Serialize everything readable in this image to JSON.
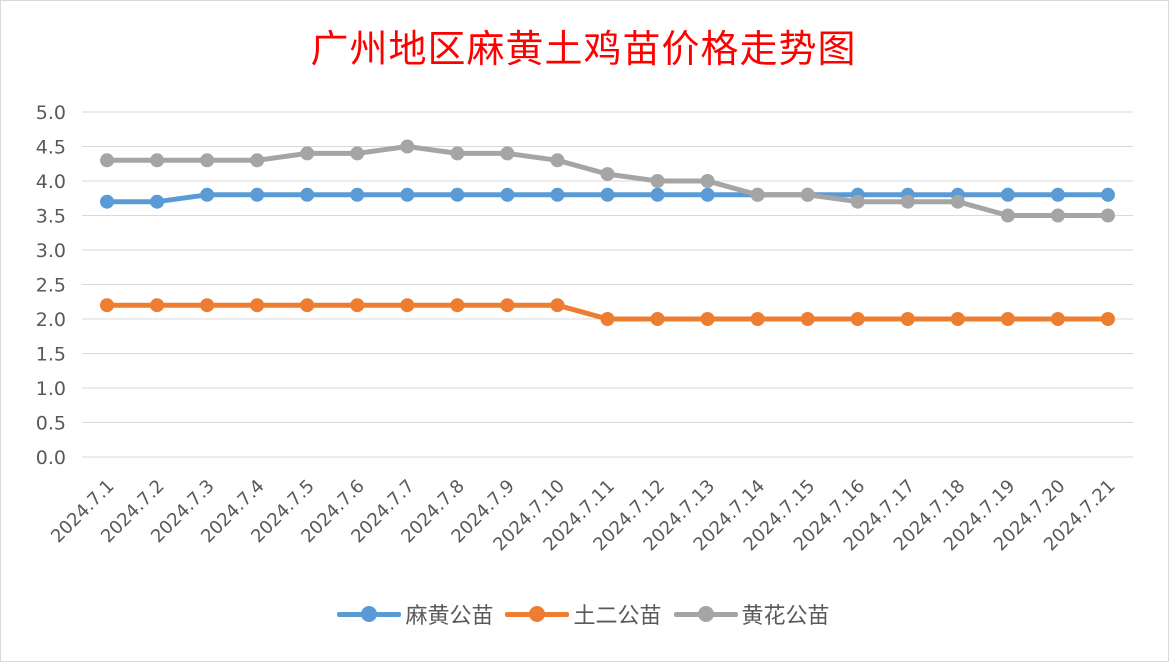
{
  "chart_data": {
    "type": "line",
    "title": "广州地区麻黄土鸡苗价格走势图",
    "categories": [
      "2024.7.1",
      "2024.7.2",
      "2024.7.3",
      "2024.7.4",
      "2024.7.5",
      "2024.7.6",
      "2024.7.7",
      "2024.7.8",
      "2024.7.9",
      "2024.7.10",
      "2024.7.11",
      "2024.7.12",
      "2024.7.13",
      "2024.7.14",
      "2024.7.15",
      "2024.7.16",
      "2024.7.17",
      "2024.7.18",
      "2024.7.19",
      "2024.7.20",
      "2024.7.21"
    ],
    "series": [
      {
        "name": "麻黄公苗",
        "color": "#5b9bd5",
        "values": [
          3.7,
          3.7,
          3.8,
          3.8,
          3.8,
          3.8,
          3.8,
          3.8,
          3.8,
          3.8,
          3.8,
          3.8,
          3.8,
          3.8,
          3.8,
          3.8,
          3.8,
          3.8,
          3.8,
          3.8,
          3.8
        ]
      },
      {
        "name": "土二公苗",
        "color": "#ed7d31",
        "values": [
          2.2,
          2.2,
          2.2,
          2.2,
          2.2,
          2.2,
          2.2,
          2.2,
          2.2,
          2.2,
          2.0,
          2.0,
          2.0,
          2.0,
          2.0,
          2.0,
          2.0,
          2.0,
          2.0,
          2.0,
          2.0
        ]
      },
      {
        "name": "黄花公苗",
        "color": "#a5a5a5",
        "values": [
          4.3,
          4.3,
          4.3,
          4.3,
          4.4,
          4.4,
          4.5,
          4.4,
          4.4,
          4.3,
          4.1,
          4.0,
          4.0,
          3.8,
          3.8,
          3.7,
          3.7,
          3.7,
          3.5,
          3.5,
          3.5
        ]
      }
    ],
    "ylim": [
      0,
      5
    ],
    "yticks": [
      "0.0",
      "0.5",
      "1.0",
      "1.5",
      "2.0",
      "2.5",
      "3.0",
      "3.5",
      "4.0",
      "4.5",
      "5.0"
    ],
    "grid": true,
    "legend_position": "bottom"
  }
}
